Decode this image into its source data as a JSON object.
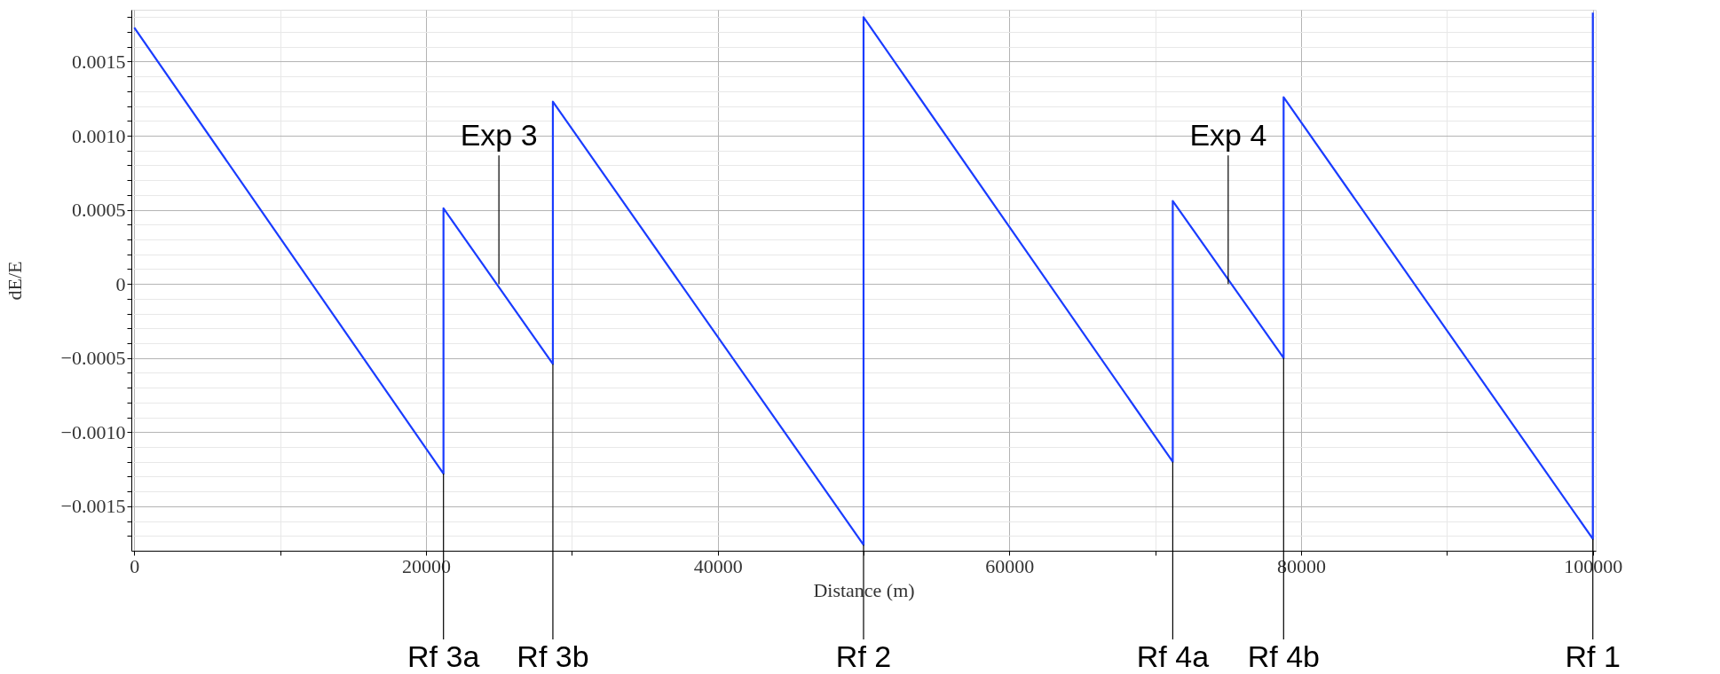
{
  "chart_data": {
    "type": "line",
    "xlabel": "Distance (m)",
    "ylabel": "dE/E",
    "x": [
      0,
      21200,
      21200,
      28700,
      28700,
      50000,
      50000,
      71200,
      71200,
      78800,
      78800,
      100000,
      100000
    ],
    "series": [
      {
        "color": "#1a3cff",
        "values": [
          0.00173,
          -0.00128,
          0.00051,
          -0.00054,
          0.00123,
          -0.00176,
          0.0018,
          -0.0012,
          0.00056,
          -0.0005,
          0.00126,
          -0.00172,
          0.00183
        ]
      }
    ],
    "xlim": [
      -200,
      100200
    ],
    "ylim": [
      -0.0018,
      0.00185
    ],
    "xticks": [
      0,
      {
        "value": 10000,
        "label": null
      },
      20000,
      {
        "value": 30000,
        "label": null
      },
      40000,
      {
        "value": 50000,
        "label": null
      },
      60000,
      {
        "value": 70000,
        "label": null
      },
      80000,
      {
        "value": 90000,
        "label": null
      },
      100000
    ],
    "yticks": [
      {
        "value": -0.0017,
        "label": null
      },
      {
        "value": -0.0016,
        "label": null
      },
      {
        "value": -0.0015,
        "label": "−0.0015"
      },
      {
        "value": -0.0014,
        "label": null
      },
      {
        "value": -0.0013,
        "label": null
      },
      {
        "value": -0.0012,
        "label": null
      },
      {
        "value": -0.0011,
        "label": null
      },
      {
        "value": -0.001,
        "label": "−0.0010"
      },
      {
        "value": -0.0009,
        "label": null
      },
      {
        "value": -0.0008,
        "label": null
      },
      {
        "value": -0.0007,
        "label": null
      },
      {
        "value": -0.0006,
        "label": null
      },
      {
        "value": -0.0005,
        "label": "−0.0005"
      },
      {
        "value": -0.0004,
        "label": null
      },
      {
        "value": -0.0003,
        "label": null
      },
      {
        "value": -0.0002,
        "label": null
      },
      {
        "value": -0.0001,
        "label": null
      },
      0,
      {
        "value": 0.0001,
        "label": null
      },
      {
        "value": 0.0002,
        "label": null
      },
      {
        "value": 0.0003,
        "label": null
      },
      {
        "value": 0.0004,
        "label": null
      },
      {
        "value": 0.0005,
        "label": "0.0005"
      },
      {
        "value": 0.0006,
        "label": null
      },
      {
        "value": 0.0007,
        "label": null
      },
      {
        "value": 0.0008,
        "label": null
      },
      {
        "value": 0.0009,
        "label": null
      },
      {
        "value": 0.001,
        "label": "0.0010"
      },
      {
        "value": 0.0011,
        "label": null
      },
      {
        "value": 0.0012,
        "label": null
      },
      {
        "value": 0.0013,
        "label": null
      },
      {
        "value": 0.0014,
        "label": null
      },
      {
        "value": 0.0015,
        "label": "0.0015"
      },
      {
        "value": 0.0016,
        "label": null
      },
      {
        "value": 0.0017,
        "label": null
      },
      {
        "value": 0.0018,
        "label": null
      }
    ],
    "grid": true,
    "marker": "none",
    "line_style": "solid",
    "annotations": [
      {
        "text": "Exp 3",
        "x": 25000,
        "y": 0
      },
      {
        "text": "Exp 4",
        "x": 75000,
        "y": 0
      },
      {
        "text": "Rf 3a",
        "x": 21200,
        "y": -0.00128
      },
      {
        "text": "Rf 3b",
        "x": 28700,
        "y": -0.00054
      },
      {
        "text": "Rf 2",
        "x": 50000,
        "y": -0.00176
      },
      {
        "text": "Rf 4a",
        "x": 71200,
        "y": -0.0012
      },
      {
        "text": "Rf 4b",
        "x": 78800,
        "y": -0.0005
      },
      {
        "text": "Rf 1",
        "x": 100000,
        "y": -0.00172
      }
    ]
  }
}
